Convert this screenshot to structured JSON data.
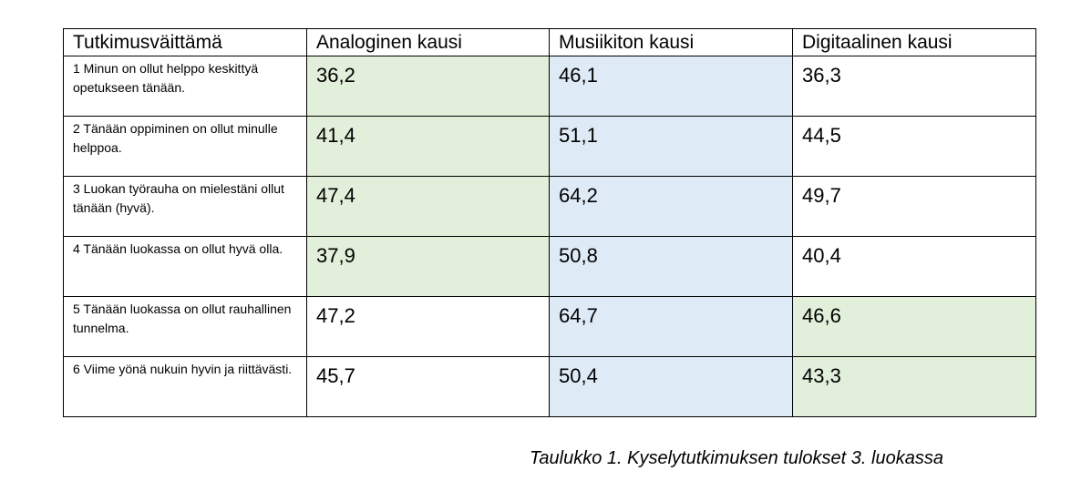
{
  "table": {
    "headers": [
      "Tutkimusväittämä",
      "Analoginen kausi",
      "Musiikiton kausi",
      "Digitaalinen kausi"
    ],
    "rows": [
      {
        "statement": "1 Minun on ollut helppo keskittyä opetukseen tänään.",
        "values": [
          "36,2",
          "46,1",
          "36,3"
        ]
      },
      {
        "statement": "2 Tänään oppiminen on ollut minulle helppoa.",
        "values": [
          "41,4",
          "51,1",
          "44,5"
        ]
      },
      {
        "statement": "3 Luokan työrauha on mielestäni ollut tänään (hyvä).",
        "values": [
          "47,4",
          "64,2",
          "49,7"
        ]
      },
      {
        "statement": "4 Tänään luokassa on ollut hyvä olla.",
        "values": [
          "37,9",
          "50,8",
          "40,4"
        ]
      },
      {
        "statement": "5 Tänään luokassa on ollut rauhallinen tunnelma.",
        "values": [
          "47,2",
          "64,7",
          "46,6"
        ]
      },
      {
        "statement": "6 Viime yönä nukuin hyvin ja riittävästi.",
        "values": [
          "45,7",
          "50,4",
          "43,3"
        ]
      }
    ],
    "highlight_colors": {
      "green": "#e2efda",
      "blue": "#deebf7"
    }
  },
  "caption": "Taulukko 1. Kyselytutkimuksen tulokset 3. luokassa"
}
